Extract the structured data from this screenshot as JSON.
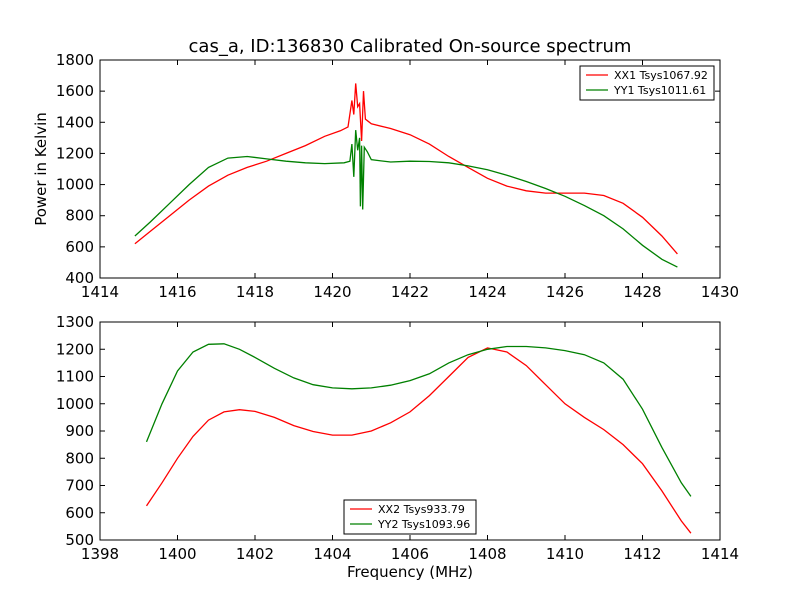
{
  "chart_data": [
    {
      "type": "line",
      "title": "cas_a, ID:136830 Calibrated On-source spectrum",
      "xlabel": "",
      "ylabel": "Power in Kelvin",
      "xlim": [
        1414,
        1430
      ],
      "ylim": [
        400,
        1800
      ],
      "xticks": [
        "1414",
        "1416",
        "1418",
        "1420",
        "1422",
        "1424",
        "1426",
        "1428",
        "1430"
      ],
      "yticks": [
        "400",
        "600",
        "800",
        "1000",
        "1200",
        "1400",
        "1600",
        "1800"
      ],
      "grid": false,
      "legend_position": "top-right",
      "series": [
        {
          "name": "XX1 Tsys1067.92",
          "color": "#ff0000",
          "points": [
            [
              1414.9,
              620
            ],
            [
              1415.3,
              700
            ],
            [
              1415.8,
              800
            ],
            [
              1416.3,
              900
            ],
            [
              1416.8,
              990
            ],
            [
              1417.3,
              1060
            ],
            [
              1417.8,
              1110
            ],
            [
              1418.3,
              1150
            ],
            [
              1418.8,
              1200
            ],
            [
              1419.3,
              1250
            ],
            [
              1419.8,
              1310
            ],
            [
              1420.2,
              1345
            ],
            [
              1420.4,
              1370
            ],
            [
              1420.5,
              1540
            ],
            [
              1420.55,
              1450
            ],
            [
              1420.6,
              1650
            ],
            [
              1420.65,
              1500
            ],
            [
              1420.7,
              1520
            ],
            [
              1420.75,
              1280
            ],
            [
              1420.8,
              1600
            ],
            [
              1420.85,
              1420
            ],
            [
              1420.9,
              1410
            ],
            [
              1421.0,
              1390
            ],
            [
              1421.5,
              1360
            ],
            [
              1422.0,
              1320
            ],
            [
              1422.5,
              1260
            ],
            [
              1423.0,
              1180
            ],
            [
              1423.5,
              1110
            ],
            [
              1424.0,
              1040
            ],
            [
              1424.5,
              990
            ],
            [
              1425.0,
              960
            ],
            [
              1425.5,
              945
            ],
            [
              1426.0,
              945
            ],
            [
              1426.5,
              945
            ],
            [
              1427.0,
              930
            ],
            [
              1427.5,
              880
            ],
            [
              1428.0,
              790
            ],
            [
              1428.5,
              670
            ],
            [
              1428.9,
              555
            ]
          ]
        },
        {
          "name": "YY1 Tsys1011.61",
          "color": "#008000",
          "points": [
            [
              1414.9,
              670
            ],
            [
              1415.3,
              760
            ],
            [
              1415.8,
              880
            ],
            [
              1416.3,
              1000
            ],
            [
              1416.8,
              1110
            ],
            [
              1417.3,
              1170
            ],
            [
              1417.8,
              1180
            ],
            [
              1418.3,
              1165
            ],
            [
              1418.8,
              1150
            ],
            [
              1419.3,
              1140
            ],
            [
              1419.8,
              1135
            ],
            [
              1420.3,
              1140
            ],
            [
              1420.45,
              1150
            ],
            [
              1420.5,
              1260
            ],
            [
              1420.55,
              1050
            ],
            [
              1420.6,
              1350
            ],
            [
              1420.65,
              1220
            ],
            [
              1420.7,
              1300
            ],
            [
              1420.72,
              860
            ],
            [
              1420.75,
              1250
            ],
            [
              1420.78,
              840
            ],
            [
              1420.82,
              1240
            ],
            [
              1420.9,
              1210
            ],
            [
              1421.0,
              1160
            ],
            [
              1421.5,
              1145
            ],
            [
              1422.0,
              1150
            ],
            [
              1422.5,
              1148
            ],
            [
              1423.0,
              1140
            ],
            [
              1423.5,
              1120
            ],
            [
              1424.0,
              1095
            ],
            [
              1424.5,
              1060
            ],
            [
              1425.0,
              1020
            ],
            [
              1425.5,
              975
            ],
            [
              1426.0,
              925
            ],
            [
              1426.5,
              865
            ],
            [
              1427.0,
              800
            ],
            [
              1427.5,
              715
            ],
            [
              1428.0,
              610
            ],
            [
              1428.5,
              520
            ],
            [
              1428.9,
              470
            ]
          ]
        }
      ]
    },
    {
      "type": "line",
      "title": "",
      "xlabel": "Frequency (MHz)",
      "ylabel": "",
      "xlim": [
        1398,
        1414
      ],
      "ylim": [
        500,
        1300
      ],
      "xticks": [
        "1398",
        "1400",
        "1402",
        "1404",
        "1406",
        "1408",
        "1410",
        "1412",
        "1414"
      ],
      "yticks": [
        "500",
        "600",
        "700",
        "800",
        "900",
        "1000",
        "1100",
        "1200",
        "1300"
      ],
      "grid": false,
      "legend_position": "bottom-center",
      "series": [
        {
          "name": "XX2 Tsys933.79",
          "color": "#ff0000",
          "points": [
            [
              1399.2,
              625
            ],
            [
              1399.6,
              710
            ],
            [
              1400.0,
              800
            ],
            [
              1400.4,
              880
            ],
            [
              1400.8,
              940
            ],
            [
              1401.2,
              970
            ],
            [
              1401.6,
              978
            ],
            [
              1402.0,
              972
            ],
            [
              1402.5,
              950
            ],
            [
              1403.0,
              920
            ],
            [
              1403.5,
              898
            ],
            [
              1404.0,
              885
            ],
            [
              1404.5,
              885
            ],
            [
              1405.0,
              900
            ],
            [
              1405.5,
              930
            ],
            [
              1406.0,
              970
            ],
            [
              1406.5,
              1030
            ],
            [
              1407.0,
              1100
            ],
            [
              1407.5,
              1170
            ],
            [
              1408.0,
              1205
            ],
            [
              1408.5,
              1190
            ],
            [
              1409.0,
              1140
            ],
            [
              1409.5,
              1070
            ],
            [
              1410.0,
              1000
            ],
            [
              1410.5,
              950
            ],
            [
              1411.0,
              905
            ],
            [
              1411.5,
              850
            ],
            [
              1412.0,
              780
            ],
            [
              1412.5,
              680
            ],
            [
              1413.0,
              570
            ],
            [
              1413.25,
              525
            ]
          ]
        },
        {
          "name": "YY2 Tsys1093.96",
          "color": "#008000",
          "points": [
            [
              1399.2,
              860
            ],
            [
              1399.6,
              1000
            ],
            [
              1400.0,
              1120
            ],
            [
              1400.4,
              1190
            ],
            [
              1400.8,
              1218
            ],
            [
              1401.2,
              1220
            ],
            [
              1401.6,
              1200
            ],
            [
              1402.0,
              1170
            ],
            [
              1402.5,
              1130
            ],
            [
              1403.0,
              1095
            ],
            [
              1403.5,
              1070
            ],
            [
              1404.0,
              1058
            ],
            [
              1404.5,
              1055
            ],
            [
              1405.0,
              1058
            ],
            [
              1405.5,
              1068
            ],
            [
              1406.0,
              1085
            ],
            [
              1406.5,
              1110
            ],
            [
              1407.0,
              1150
            ],
            [
              1407.5,
              1180
            ],
            [
              1408.0,
              1200
            ],
            [
              1408.5,
              1210
            ],
            [
              1409.0,
              1210
            ],
            [
              1409.5,
              1205
            ],
            [
              1410.0,
              1195
            ],
            [
              1410.5,
              1180
            ],
            [
              1411.0,
              1150
            ],
            [
              1411.5,
              1090
            ],
            [
              1412.0,
              980
            ],
            [
              1412.5,
              840
            ],
            [
              1413.0,
              710
            ],
            [
              1413.25,
              660
            ]
          ]
        }
      ]
    }
  ]
}
